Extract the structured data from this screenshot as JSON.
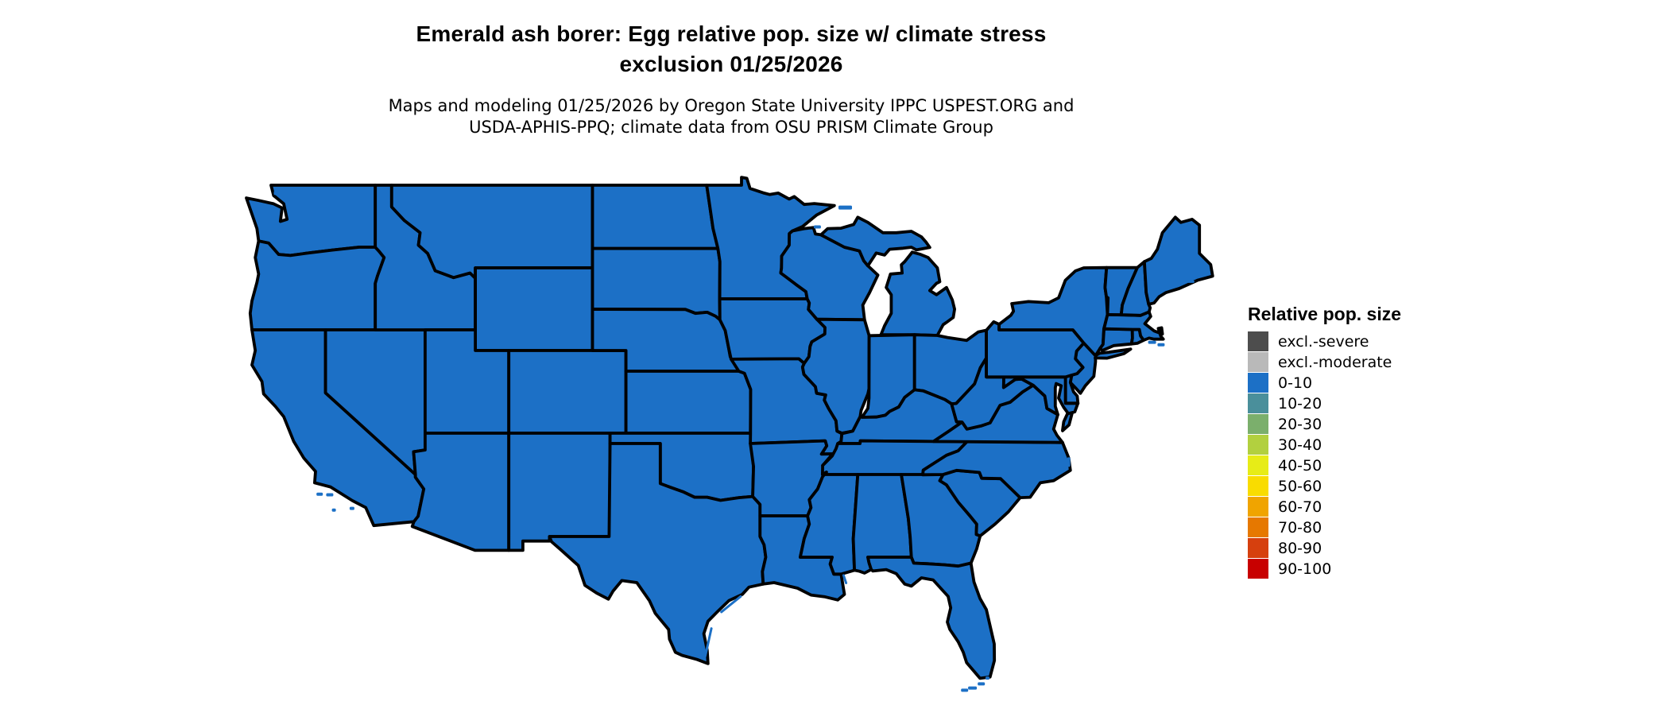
{
  "header": {
    "title_line1": "Emerald ash borer: Egg relative pop. size w/ climate stress",
    "title_line2": "exclusion 01/25/2026",
    "subtitle_line1": "Maps and modeling 01/25/2026 by Oregon State University IPPC USPEST.ORG and",
    "subtitle_line2": "USDA-APHIS-PPQ; climate data from OSU PRISM Climate Group"
  },
  "legend": {
    "title": "Relative pop. size",
    "items": [
      {
        "label": "excl.-severe",
        "color": "#4D4D4D"
      },
      {
        "label": "excl.-moderate",
        "color": "#B9B9B9"
      },
      {
        "label": "0-10",
        "color": "#1C70C6"
      },
      {
        "label": "10-20",
        "color": "#4A8F9B"
      },
      {
        "label": "20-30",
        "color": "#7BAF6C"
      },
      {
        "label": "30-40",
        "color": "#B2D03F"
      },
      {
        "label": "40-50",
        "color": "#E7EC17"
      },
      {
        "label": "50-60",
        "color": "#F9DC00"
      },
      {
        "label": "60-70",
        "color": "#F0A400"
      },
      {
        "label": "70-80",
        "color": "#E67800"
      },
      {
        "label": "80-90",
        "color": "#D6400E"
      },
      {
        "label": "90-100",
        "color": "#C80000"
      }
    ]
  },
  "map": {
    "fill_color": "#1C70C6",
    "border_color": "#000000",
    "background_color": "#FFFFFF"
  }
}
